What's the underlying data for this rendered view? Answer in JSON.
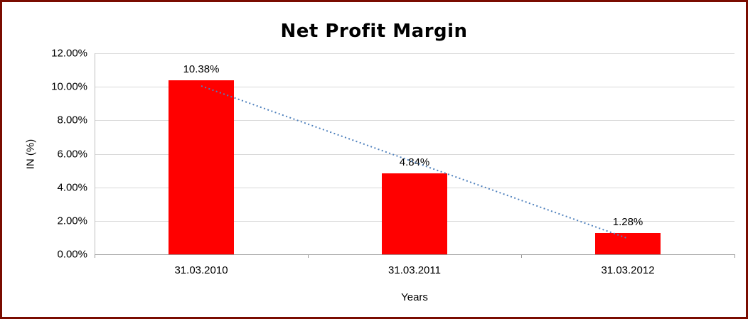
{
  "chart_data": {
    "type": "bar",
    "title": "Net Profit Margin",
    "xlabel": "Years",
    "ylabel": "IN (%)",
    "categories": [
      "31.03.2010",
      "31.03.2011",
      "31.03.2012"
    ],
    "values": [
      10.38,
      4.84,
      1.28
    ],
    "data_labels": [
      "10.38%",
      "4.84%",
      "1.28%"
    ],
    "ylim": [
      0,
      12
    ],
    "ytick_step": 2,
    "ytick_labels": [
      "0.00%",
      "2.00%",
      "4.00%",
      "6.00%",
      "8.00%",
      "10.00%",
      "12.00%"
    ],
    "grid": true,
    "legend": "none",
    "trendline": true,
    "colors": {
      "bar": "#ff0000",
      "trendline": "#4f81bd",
      "gridline": "#d9d9d9",
      "axis": "#9a9a9a",
      "frame_border": "#7a0c00",
      "text": "#000000",
      "background": "#ffffff"
    }
  }
}
